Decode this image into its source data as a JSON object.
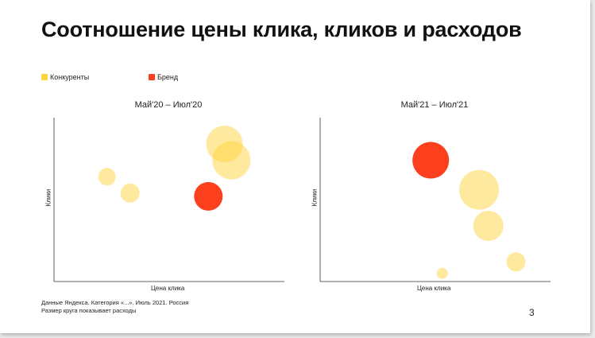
{
  "title": "Соотношение цены клика, кликов и расходов",
  "legend": [
    {
      "label": "Конкуренты",
      "color": "#ffd33d"
    },
    {
      "label": "Бренд",
      "color": "#fc3f1d"
    }
  ],
  "footnote": {
    "line1": "Данные Яндекса. Категория «...». Июль 2021. Россия",
    "line2": "Размер круга показывает расходы"
  },
  "page_number": "3",
  "chart_data": [
    {
      "type": "scatter",
      "title": "Май'20 – Июл'20",
      "xlabel": "Цена клика",
      "ylabel": "Клики",
      "xlim": [
        0,
        100
      ],
      "ylim": [
        0,
        100
      ],
      "grid": false,
      "points": [
        {
          "series": "Конкуренты",
          "x": 23,
          "y": 64,
          "size": 11
        },
        {
          "series": "Конкуренты",
          "x": 33,
          "y": 54,
          "size": 12
        },
        {
          "series": "Конкуренты",
          "x": 74,
          "y": 84,
          "size": 23
        },
        {
          "series": "Конкуренты",
          "x": 77,
          "y": 74,
          "size": 24
        },
        {
          "series": "Бренд",
          "x": 67,
          "y": 52,
          "size": 18
        }
      ]
    },
    {
      "type": "scatter",
      "title": "Май'21 – Июл'21",
      "xlabel": "Цена клика",
      "ylabel": "Клики",
      "xlim": [
        0,
        100
      ],
      "ylim": [
        0,
        100
      ],
      "grid": false,
      "points": [
        {
          "series": "Бренд",
          "x": 48,
          "y": 74,
          "size": 23
        },
        {
          "series": "Конкуренты",
          "x": 69,
          "y": 56,
          "size": 25
        },
        {
          "series": "Конкуренты",
          "x": 73,
          "y": 34,
          "size": 19
        },
        {
          "series": "Конкуренты",
          "x": 85,
          "y": 12,
          "size": 12
        },
        {
          "series": "Конкуренты",
          "x": 53,
          "y": 5,
          "size": 7
        }
      ]
    }
  ]
}
